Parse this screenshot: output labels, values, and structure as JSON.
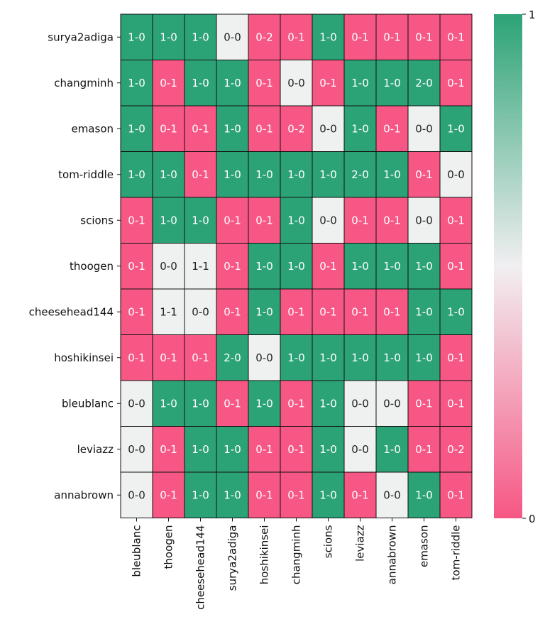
{
  "chart_data": {
    "type": "heatmap",
    "title": "",
    "xlabel": "",
    "ylabel": "",
    "rows": [
      "surya2adiga",
      "changminh",
      "emason",
      "tom-riddle",
      "scions",
      "thoogen",
      "cheesehead144",
      "hoshikinsei",
      "bleublanc",
      "leviazz",
      "annabrown"
    ],
    "columns": [
      "bleublanc",
      "thoogen",
      "cheesehead144",
      "surya2adiga",
      "hoshikinsei",
      "changminh",
      "scions",
      "leviazz",
      "annabrown",
      "emason",
      "tom-riddle"
    ],
    "annotations": [
      [
        "1-0",
        "1-0",
        "1-0",
        "0-0",
        "0-2",
        "0-1",
        "1-0",
        "0-1",
        "0-1",
        "0-1",
        "0-1"
      ],
      [
        "1-0",
        "0-1",
        "1-0",
        "1-0",
        "0-1",
        "0-0",
        "0-1",
        "1-0",
        "1-0",
        "2-0",
        "0-1"
      ],
      [
        "1-0",
        "0-1",
        "0-1",
        "1-0",
        "0-1",
        "0-2",
        "0-0",
        "1-0",
        "0-1",
        "0-0",
        "1-0"
      ],
      [
        "1-0",
        "1-0",
        "0-1",
        "1-0",
        "1-0",
        "1-0",
        "1-0",
        "2-0",
        "1-0",
        "0-1",
        "0-0"
      ],
      [
        "0-1",
        "1-0",
        "1-0",
        "0-1",
        "0-1",
        "1-0",
        "0-0",
        "0-1",
        "0-1",
        "0-0",
        "0-1"
      ],
      [
        "0-1",
        "0-0",
        "1-1",
        "0-1",
        "1-0",
        "1-0",
        "0-1",
        "1-0",
        "1-0",
        "1-0",
        "0-1"
      ],
      [
        "0-1",
        "1-1",
        "0-0",
        "0-1",
        "1-0",
        "0-1",
        "0-1",
        "0-1",
        "0-1",
        "1-0",
        "1-0"
      ],
      [
        "0-1",
        "0-1",
        "0-1",
        "2-0",
        "0-0",
        "1-0",
        "1-0",
        "1-0",
        "1-0",
        "1-0",
        "0-1"
      ],
      [
        "0-0",
        "1-0",
        "1-0",
        "0-1",
        "1-0",
        "0-1",
        "1-0",
        "0-0",
        "0-0",
        "0-1",
        "0-1"
      ],
      [
        "0-0",
        "0-1",
        "1-0",
        "1-0",
        "0-1",
        "0-1",
        "1-0",
        "0-0",
        "1-0",
        "0-1",
        "0-2"
      ],
      [
        "0-0",
        "0-1",
        "1-0",
        "1-0",
        "0-1",
        "0-1",
        "1-0",
        "0-1",
        "0-0",
        "1-0",
        "0-1"
      ]
    ],
    "colorbar": {
      "range": [
        0,
        1
      ],
      "ticks": [
        "0",
        "1"
      ]
    },
    "colors": {
      "high": "#2ca376",
      "mid": "#eff1f0",
      "low": "#f65784"
    }
  }
}
